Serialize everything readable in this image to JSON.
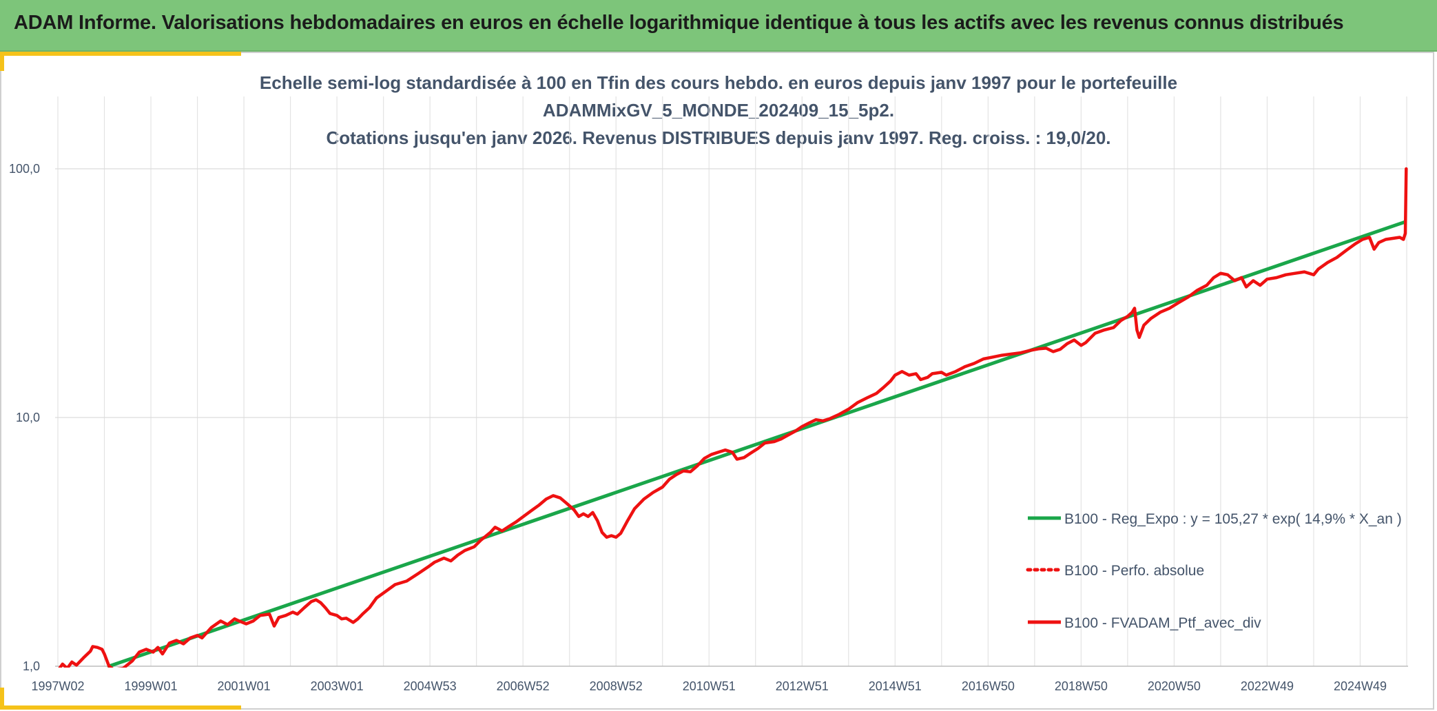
{
  "banner": {
    "title": "ADAM Informe. Valorisations hebdomadaires en euros en échelle logarithmique identique à tous les actifs avec les revenus connus distribués"
  },
  "colors": {
    "banner_bg": "#7dc57a",
    "accent": "#f5c21a",
    "series_regression": "#1aa64a",
    "series_portfolio": "#ee1111",
    "title_text": "#44546a"
  },
  "chart_data": {
    "type": "line",
    "title_lines": [
      "Echelle semi-log standardisée à 100 en Tfin des cours hebdo. en euros depuis janv 1997 pour le portefeuille",
      "ADAMMixGV_5_MONDE_202409_15_5p2.",
      "Cotations jusqu'en janv 2026. Revenus DISTRIBUES depuis janv 1997. Reg. croiss. : 19,0/20."
    ],
    "y_scale": "log",
    "ylim": [
      1,
      100
    ],
    "y_ticks": [
      "1,0",
      "10,0",
      "100,0"
    ],
    "y_tick_values": [
      1,
      10,
      100
    ],
    "xlim": [
      1997.0,
      2026.0
    ],
    "x_ticks": [
      "1997W02",
      "1999W01",
      "2001W01",
      "2003W01",
      "2004W53",
      "2006W52",
      "2008W52",
      "2010W51",
      "2012W51",
      "2014W51",
      "2016W50",
      "2018W50",
      "2020W50",
      "2022W49",
      "2024W49"
    ],
    "x_tick_values": [
      1997.0,
      1999.0,
      2001.0,
      2003.0,
      2005.0,
      2007.0,
      2009.0,
      2011.0,
      2013.0,
      2015.0,
      2017.0,
      2019.0,
      2021.0,
      2023.0,
      2025.0
    ],
    "grid": {
      "vertical": true,
      "horizontal": true
    },
    "legend_position": "bottom-right",
    "series": [
      {
        "name": "B100 - Reg_Expo : y = 105,27 * exp( 14,9% *  X_an )",
        "color": "#1aa64a",
        "style": "solid",
        "points": [
          [
            1998.1,
            1.0
          ],
          [
            2025.95,
            61.0
          ]
        ]
      },
      {
        "name": "B100 - Perfo. absolue",
        "color": "#ee1111",
        "style": "dotted",
        "points": []
      },
      {
        "name": "B100 - FVADAM_Ptf_avec_div",
        "color": "#ee1111",
        "style": "solid",
        "points": [
          [
            1997.0,
            0.96
          ],
          [
            1997.1,
            1.02
          ],
          [
            1997.2,
            0.98
          ],
          [
            1997.3,
            1.04
          ],
          [
            1997.4,
            1.01
          ],
          [
            1997.55,
            1.08
          ],
          [
            1997.7,
            1.15
          ],
          [
            1997.75,
            1.2
          ],
          [
            1997.85,
            1.19
          ],
          [
            1997.95,
            1.17
          ],
          [
            1998.0,
            1.12
          ],
          [
            1998.1,
            1.0
          ],
          [
            1998.2,
            0.97
          ],
          [
            1998.4,
            0.98
          ],
          [
            1998.6,
            1.05
          ],
          [
            1998.75,
            1.14
          ],
          [
            1998.9,
            1.17
          ],
          [
            1999.05,
            1.14
          ],
          [
            1999.15,
            1.19
          ],
          [
            1999.25,
            1.12
          ],
          [
            1999.4,
            1.24
          ],
          [
            1999.55,
            1.27
          ],
          [
            1999.7,
            1.23
          ],
          [
            1999.85,
            1.3
          ],
          [
            2000.0,
            1.33
          ],
          [
            2000.1,
            1.3
          ],
          [
            2000.3,
            1.43
          ],
          [
            2000.5,
            1.52
          ],
          [
            2000.65,
            1.47
          ],
          [
            2000.8,
            1.55
          ],
          [
            2000.9,
            1.52
          ],
          [
            2001.05,
            1.48
          ],
          [
            2001.2,
            1.52
          ],
          [
            2001.35,
            1.6
          ],
          [
            2001.55,
            1.62
          ],
          [
            2001.65,
            1.45
          ],
          [
            2001.75,
            1.57
          ],
          [
            2001.9,
            1.6
          ],
          [
            2002.05,
            1.65
          ],
          [
            2002.15,
            1.62
          ],
          [
            2002.3,
            1.72
          ],
          [
            2002.45,
            1.82
          ],
          [
            2002.55,
            1.85
          ],
          [
            2002.65,
            1.8
          ],
          [
            2002.75,
            1.72
          ],
          [
            2002.85,
            1.63
          ],
          [
            2003.0,
            1.6
          ],
          [
            2003.1,
            1.55
          ],
          [
            2003.2,
            1.56
          ],
          [
            2003.35,
            1.5
          ],
          [
            2003.45,
            1.55
          ],
          [
            2003.55,
            1.62
          ],
          [
            2003.7,
            1.72
          ],
          [
            2003.85,
            1.88
          ],
          [
            2004.05,
            2.0
          ],
          [
            2004.25,
            2.13
          ],
          [
            2004.5,
            2.2
          ],
          [
            2004.75,
            2.36
          ],
          [
            2004.95,
            2.5
          ],
          [
            2005.1,
            2.62
          ],
          [
            2005.3,
            2.72
          ],
          [
            2005.45,
            2.65
          ],
          [
            2005.6,
            2.8
          ],
          [
            2005.75,
            2.92
          ],
          [
            2005.95,
            3.02
          ],
          [
            2006.1,
            3.22
          ],
          [
            2006.3,
            3.45
          ],
          [
            2006.4,
            3.62
          ],
          [
            2006.55,
            3.5
          ],
          [
            2006.7,
            3.65
          ],
          [
            2006.85,
            3.8
          ],
          [
            2007.05,
            4.05
          ],
          [
            2007.2,
            4.25
          ],
          [
            2007.35,
            4.45
          ],
          [
            2007.5,
            4.7
          ],
          [
            2007.65,
            4.85
          ],
          [
            2007.8,
            4.75
          ],
          [
            2007.95,
            4.5
          ],
          [
            2008.1,
            4.25
          ],
          [
            2008.2,
            4.0
          ],
          [
            2008.3,
            4.1
          ],
          [
            2008.4,
            4.0
          ],
          [
            2008.5,
            4.15
          ],
          [
            2008.6,
            3.85
          ],
          [
            2008.7,
            3.45
          ],
          [
            2008.8,
            3.3
          ],
          [
            2008.9,
            3.35
          ],
          [
            2009.0,
            3.3
          ],
          [
            2009.1,
            3.42
          ],
          [
            2009.25,
            3.85
          ],
          [
            2009.4,
            4.3
          ],
          [
            2009.6,
            4.7
          ],
          [
            2009.8,
            5.0
          ],
          [
            2010.0,
            5.25
          ],
          [
            2010.15,
            5.65
          ],
          [
            2010.3,
            5.9
          ],
          [
            2010.45,
            6.1
          ],
          [
            2010.6,
            6.05
          ],
          [
            2010.75,
            6.4
          ],
          [
            2010.9,
            6.85
          ],
          [
            2011.05,
            7.1
          ],
          [
            2011.2,
            7.25
          ],
          [
            2011.35,
            7.4
          ],
          [
            2011.5,
            7.25
          ],
          [
            2011.6,
            6.8
          ],
          [
            2011.75,
            6.9
          ],
          [
            2011.9,
            7.2
          ],
          [
            2012.05,
            7.5
          ],
          [
            2012.2,
            7.9
          ],
          [
            2012.4,
            8.0
          ],
          [
            2012.55,
            8.2
          ],
          [
            2012.7,
            8.5
          ],
          [
            2012.85,
            8.8
          ],
          [
            2013.0,
            9.2
          ],
          [
            2013.15,
            9.5
          ],
          [
            2013.3,
            9.8
          ],
          [
            2013.45,
            9.7
          ],
          [
            2013.6,
            9.9
          ],
          [
            2013.8,
            10.3
          ],
          [
            2014.0,
            10.8
          ],
          [
            2014.2,
            11.5
          ],
          [
            2014.4,
            12.0
          ],
          [
            2014.6,
            12.5
          ],
          [
            2014.75,
            13.2
          ],
          [
            2014.9,
            14.0
          ],
          [
            2015.0,
            14.8
          ],
          [
            2015.15,
            15.3
          ],
          [
            2015.3,
            14.8
          ],
          [
            2015.45,
            15.0
          ],
          [
            2015.55,
            14.2
          ],
          [
            2015.7,
            14.5
          ],
          [
            2015.8,
            15.0
          ],
          [
            2016.0,
            15.2
          ],
          [
            2016.1,
            14.8
          ],
          [
            2016.3,
            15.3
          ],
          [
            2016.5,
            16.0
          ],
          [
            2016.7,
            16.5
          ],
          [
            2016.9,
            17.2
          ],
          [
            2017.1,
            17.5
          ],
          [
            2017.3,
            17.8
          ],
          [
            2017.5,
            18.0
          ],
          [
            2017.7,
            18.2
          ],
          [
            2017.9,
            18.6
          ],
          [
            2018.1,
            18.9
          ],
          [
            2018.25,
            19.0
          ],
          [
            2018.4,
            18.4
          ],
          [
            2018.55,
            18.8
          ],
          [
            2018.7,
            19.8
          ],
          [
            2018.85,
            20.5
          ],
          [
            2019.0,
            19.5
          ],
          [
            2019.1,
            20.0
          ],
          [
            2019.3,
            21.8
          ],
          [
            2019.5,
            22.5
          ],
          [
            2019.7,
            23.0
          ],
          [
            2019.85,
            24.5
          ],
          [
            2020.0,
            25.5
          ],
          [
            2020.1,
            26.5
          ],
          [
            2020.15,
            27.5
          ],
          [
            2020.2,
            22.5
          ],
          [
            2020.25,
            21.0
          ],
          [
            2020.35,
            23.5
          ],
          [
            2020.5,
            25.0
          ],
          [
            2020.7,
            26.5
          ],
          [
            2020.9,
            27.5
          ],
          [
            2021.1,
            29.0
          ],
          [
            2021.3,
            30.5
          ],
          [
            2021.5,
            32.5
          ],
          [
            2021.7,
            34.0
          ],
          [
            2021.85,
            36.5
          ],
          [
            2022.0,
            38.0
          ],
          [
            2022.15,
            37.5
          ],
          [
            2022.3,
            35.5
          ],
          [
            2022.45,
            36.5
          ],
          [
            2022.55,
            33.5
          ],
          [
            2022.7,
            35.5
          ],
          [
            2022.85,
            34.0
          ],
          [
            2023.0,
            36.0
          ],
          [
            2023.2,
            36.5
          ],
          [
            2023.4,
            37.5
          ],
          [
            2023.6,
            38.0
          ],
          [
            2023.8,
            38.5
          ],
          [
            2024.0,
            37.5
          ],
          [
            2024.1,
            39.5
          ],
          [
            2024.3,
            42.0
          ],
          [
            2024.5,
            44.0
          ],
          [
            2024.7,
            47.0
          ],
          [
            2024.9,
            50.0
          ],
          [
            2025.05,
            52.0
          ],
          [
            2025.2,
            53.0
          ],
          [
            2025.3,
            47.5
          ],
          [
            2025.4,
            50.5
          ],
          [
            2025.55,
            52.0
          ],
          [
            2025.7,
            52.5
          ],
          [
            2025.85,
            53.0
          ],
          [
            2025.93,
            52.0
          ],
          [
            2025.97,
            55.0
          ],
          [
            2025.99,
            100.0
          ]
        ]
      }
    ]
  }
}
